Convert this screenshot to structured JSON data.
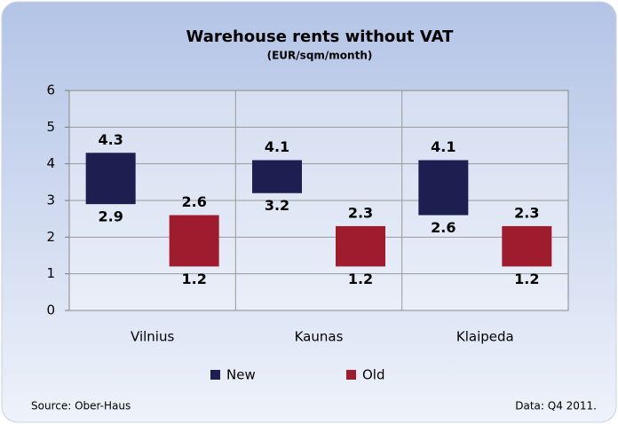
{
  "chart_data": {
    "type": "range_bar",
    "title": "Warehouse rents without VAT",
    "subtitle": "(EUR/sqm/month)",
    "categories": [
      "Vilnius",
      "Kaunas",
      "Klaipeda"
    ],
    "series": [
      {
        "name": "New",
        "color": "#1c1f4f",
        "low": [
          2.9,
          3.2,
          2.6
        ],
        "high": [
          4.3,
          4.1,
          4.1
        ]
      },
      {
        "name": "Old",
        "color": "#9e1c2e",
        "low": [
          1.2,
          1.2,
          1.2
        ],
        "high": [
          2.6,
          2.3,
          2.3
        ]
      }
    ],
    "ylim": [
      0,
      6
    ],
    "yticks": [
      0,
      1,
      2,
      3,
      4,
      5,
      6
    ],
    "grid": true,
    "legend": "bottom",
    "source": "Source: Ober-Haus",
    "note": "Data: Q4 2011."
  }
}
